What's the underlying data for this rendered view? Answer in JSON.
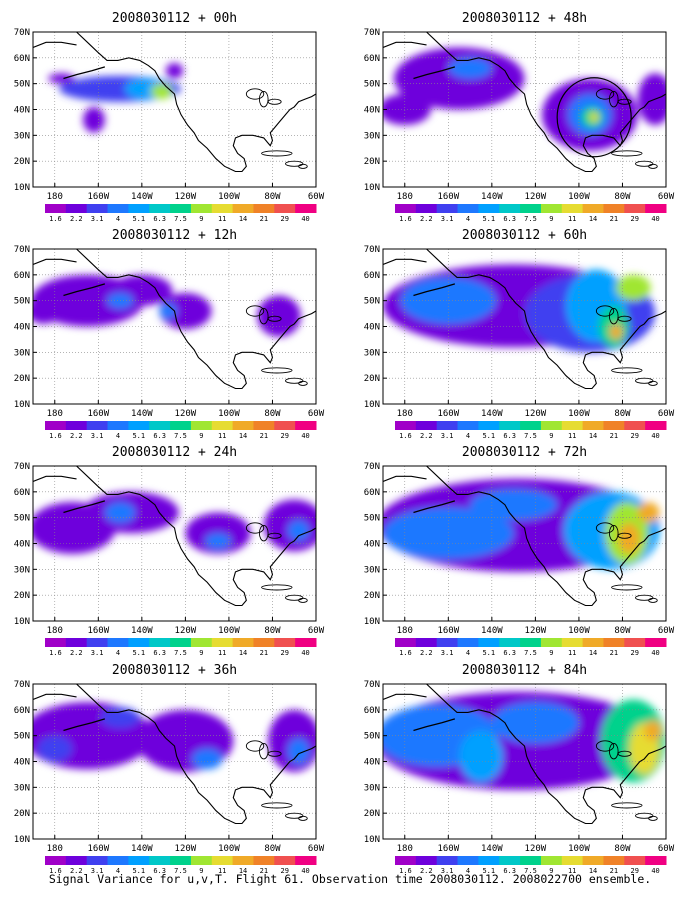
{
  "caption": "Signal Variance for u,v,T. Flight 61. Observation time 2008030112. 2008022700 ensemble.",
  "colorbar": {
    "labels": [
      "1.6",
      "2.2",
      "3.1",
      "4",
      "5.1",
      "6.3",
      "7.5",
      "9",
      "11",
      "14",
      "21",
      "29",
      "40"
    ],
    "colors": [
      "#a000c8",
      "#6e00dc",
      "#4040f0",
      "#1e78ff",
      "#00a0ff",
      "#00c8c8",
      "#00d28c",
      "#a0e632",
      "#e6dc32",
      "#f0aa28",
      "#f08228",
      "#f05050",
      "#f00082"
    ]
  },
  "axes": {
    "x_ticks": [
      "180",
      "160W",
      "140W",
      "120W",
      "100W",
      "80W",
      "60W"
    ],
    "y_ticks": [
      "10N",
      "20N",
      "30N",
      "40N",
      "50N",
      "60N",
      "70N"
    ],
    "lon_range": [
      170,
      300
    ],
    "lat_range": [
      10,
      70
    ]
  },
  "chart_data": [
    {
      "type": "heatmap",
      "title": "2008030112 + 00h",
      "column": 0,
      "row": 0,
      "blobs": [
        {
          "lon": 210,
          "lat": 48,
          "rlon": 28,
          "rlat": 5,
          "level": 2
        },
        {
          "lon": 222,
          "lat": 48,
          "rlon": 10,
          "rlat": 4,
          "level": 4
        },
        {
          "lon": 229,
          "lat": 47,
          "rlon": 5,
          "rlat": 3,
          "level": 7
        },
        {
          "lon": 183,
          "lat": 52,
          "rlon": 6,
          "rlat": 2,
          "level": 1
        },
        {
          "lon": 198,
          "lat": 36,
          "rlon": 5,
          "rlat": 5,
          "level": 1
        },
        {
          "lon": 235,
          "lat": 55,
          "rlon": 4,
          "rlat": 3,
          "level": 1
        }
      ]
    },
    {
      "type": "heatmap",
      "title": "2008030112 + 12h",
      "column": 0,
      "row": 1,
      "blobs": [
        {
          "lon": 195,
          "lat": 50,
          "rlon": 26,
          "rlat": 10,
          "level": 1
        },
        {
          "lon": 220,
          "lat": 54,
          "rlon": 14,
          "rlat": 6,
          "level": 1
        },
        {
          "lon": 240,
          "lat": 46,
          "rlon": 12,
          "rlat": 7,
          "level": 1
        },
        {
          "lon": 210,
          "lat": 50,
          "rlon": 6,
          "rlat": 3,
          "level": 3
        },
        {
          "lon": 175,
          "lat": 46,
          "rlon": 8,
          "rlat": 5,
          "level": 1
        },
        {
          "lon": 283,
          "lat": 44,
          "rlon": 10,
          "rlat": 8,
          "level": 1
        },
        {
          "lon": 232,
          "lat": 46,
          "rlon": 4,
          "rlat": 3,
          "level": 3
        }
      ]
    },
    {
      "type": "heatmap",
      "title": "2008030112 + 24h",
      "column": 0,
      "row": 2,
      "blobs": [
        {
          "lon": 188,
          "lat": 46,
          "rlon": 20,
          "rlat": 10,
          "level": 1
        },
        {
          "lon": 215,
          "lat": 52,
          "rlon": 22,
          "rlat": 8,
          "level": 1
        },
        {
          "lon": 255,
          "lat": 44,
          "rlon": 15,
          "rlat": 8,
          "level": 1
        },
        {
          "lon": 290,
          "lat": 47,
          "rlon": 14,
          "rlat": 10,
          "level": 1
        },
        {
          "lon": 210,
          "lat": 52,
          "rlon": 7,
          "rlat": 4,
          "level": 3
        },
        {
          "lon": 255,
          "lat": 41,
          "rlon": 6,
          "rlat": 3,
          "level": 3
        },
        {
          "lon": 292,
          "lat": 45,
          "rlon": 5,
          "rlat": 4,
          "level": 3
        }
      ]
    },
    {
      "type": "heatmap",
      "title": "2008030112 + 36h",
      "column": 0,
      "row": 3,
      "blobs": [
        {
          "lon": 195,
          "lat": 50,
          "rlon": 30,
          "rlat": 13,
          "level": 1
        },
        {
          "lon": 240,
          "lat": 48,
          "rlon": 22,
          "rlat": 12,
          "level": 1
        },
        {
          "lon": 290,
          "lat": 48,
          "rlon": 12,
          "rlat": 12,
          "level": 1
        },
        {
          "lon": 180,
          "lat": 45,
          "rlon": 8,
          "rlat": 5,
          "level": 2
        },
        {
          "lon": 210,
          "lat": 57,
          "rlon": 9,
          "rlat": 4,
          "level": 2
        },
        {
          "lon": 250,
          "lat": 41,
          "rlon": 7,
          "rlat": 4,
          "level": 3
        },
        {
          "lon": 292,
          "lat": 44,
          "rlon": 5,
          "rlat": 5,
          "level": 3
        }
      ]
    },
    {
      "type": "heatmap",
      "title": "2008030112 + 48h",
      "column": 1,
      "row": 0,
      "blobs": [
        {
          "lon": 205,
          "lat": 52,
          "rlon": 30,
          "rlat": 12,
          "level": 1
        },
        {
          "lon": 180,
          "lat": 40,
          "rlon": 12,
          "rlat": 6,
          "level": 1
        },
        {
          "lon": 265,
          "lat": 38,
          "rlon": 22,
          "rlat": 14,
          "level": 1
        },
        {
          "lon": 295,
          "lat": 44,
          "rlon": 8,
          "rlat": 10,
          "level": 1
        },
        {
          "lon": 210,
          "lat": 56,
          "rlon": 10,
          "rlat": 4,
          "level": 3
        },
        {
          "lon": 265,
          "lat": 38,
          "rlon": 10,
          "rlat": 8,
          "level": 3
        },
        {
          "lon": 266,
          "lat": 37,
          "rlon": 5,
          "rlat": 4,
          "level": 6
        },
        {
          "lon": 267,
          "lat": 37,
          "rlon": 2,
          "rlat": 2,
          "level": 8
        }
      ],
      "circle": {
        "lon": 267,
        "lat": 37,
        "r": 17
      }
    },
    {
      "type": "heatmap",
      "title": "2008030112 + 60h",
      "column": 1,
      "row": 1,
      "blobs": [
        {
          "lon": 230,
          "lat": 48,
          "rlon": 60,
          "rlat": 16,
          "level": 1
        },
        {
          "lon": 265,
          "lat": 45,
          "rlon": 30,
          "rlat": 15,
          "level": 2
        },
        {
          "lon": 200,
          "lat": 50,
          "rlon": 22,
          "rlat": 9,
          "level": 3
        },
        {
          "lon": 268,
          "lat": 48,
          "rlon": 14,
          "rlat": 14,
          "level": 4
        },
        {
          "lon": 276,
          "lat": 40,
          "rlon": 7,
          "rlat": 8,
          "level": 6
        },
        {
          "lon": 277,
          "lat": 38,
          "rlon": 3,
          "rlat": 3,
          "level": 9
        },
        {
          "lon": 285,
          "lat": 55,
          "rlon": 8,
          "rlat": 5,
          "level": 7
        }
      ]
    },
    {
      "type": "heatmap",
      "title": "2008030112 + 72h",
      "column": 1,
      "row": 2,
      "blobs": [
        {
          "lon": 232,
          "lat": 47,
          "rlon": 65,
          "rlat": 18,
          "level": 1
        },
        {
          "lon": 200,
          "lat": 44,
          "rlon": 30,
          "rlat": 10,
          "level": 3
        },
        {
          "lon": 230,
          "lat": 55,
          "rlon": 20,
          "rlat": 6,
          "level": 3
        },
        {
          "lon": 275,
          "lat": 45,
          "rlon": 22,
          "rlat": 15,
          "level": 4
        },
        {
          "lon": 282,
          "lat": 44,
          "rlon": 10,
          "rlat": 12,
          "level": 7
        },
        {
          "lon": 283,
          "lat": 42,
          "rlon": 5,
          "rlat": 6,
          "level": 9
        },
        {
          "lon": 292,
          "lat": 52,
          "rlon": 5,
          "rlat": 4,
          "level": 9
        }
      ]
    },
    {
      "type": "heatmap",
      "title": "2008030112 + 84h",
      "column": 1,
      "row": 3,
      "blobs": [
        {
          "lon": 232,
          "lat": 48,
          "rlon": 66,
          "rlat": 19,
          "level": 1
        },
        {
          "lon": 195,
          "lat": 50,
          "rlon": 28,
          "rlat": 12,
          "level": 3
        },
        {
          "lon": 240,
          "lat": 55,
          "rlon": 20,
          "rlat": 8,
          "level": 3
        },
        {
          "lon": 215,
          "lat": 42,
          "rlon": 10,
          "rlat": 10,
          "level": 4
        },
        {
          "lon": 285,
          "lat": 48,
          "rlon": 15,
          "rlat": 16,
          "level": 6
        },
        {
          "lon": 290,
          "lat": 45,
          "rlon": 7,
          "rlat": 10,
          "level": 8
        },
        {
          "lon": 294,
          "lat": 52,
          "rlon": 4,
          "rlat": 4,
          "level": 9
        }
      ]
    }
  ]
}
